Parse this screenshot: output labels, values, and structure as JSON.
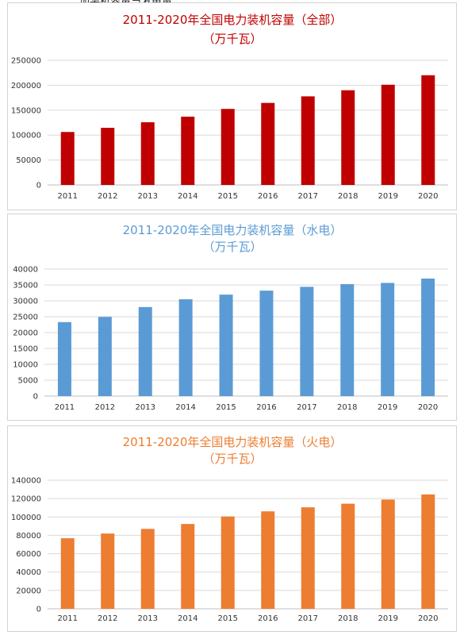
{
  "page": {
    "top_text": "加装机容量与发电量"
  },
  "chart_data": [
    {
      "type": "bar",
      "title": "2011-2020年全国电力装机容量（全部）",
      "subtitle": "（万千瓦）",
      "title_color": "#c00000",
      "bar_color": "#c00000",
      "categories": [
        "2011",
        "2012",
        "2013",
        "2014",
        "2015",
        "2016",
        "2017",
        "2018",
        "2019",
        "2020"
      ],
      "values": [
        106253,
        114676,
        125768,
        137018,
        152527,
        164575,
        177708,
        189967,
        201006,
        220058
      ],
      "ylim": [
        0,
        250000
      ],
      "yticks": [
        0,
        50000,
        100000,
        150000,
        200000,
        250000
      ],
      "grid": true,
      "legend": "none"
    },
    {
      "type": "bar",
      "title": "2011-2020年全国电力装机容量（水电）",
      "subtitle": "（万千瓦）",
      "title_color": "#5b9bd5",
      "bar_color": "#5b9bd5",
      "categories": [
        "2011",
        "2012",
        "2013",
        "2014",
        "2015",
        "2016",
        "2017",
        "2018",
        "2019",
        "2020"
      ],
      "values": [
        23298,
        24947,
        28044,
        30486,
        31954,
        33207,
        34411,
        35259,
        35640,
        37016
      ],
      "ylim": [
        0,
        40000
      ],
      "yticks": [
        0,
        5000,
        10000,
        15000,
        20000,
        25000,
        30000,
        35000,
        40000
      ],
      "grid": true,
      "legend": "none"
    },
    {
      "type": "bar",
      "title": "2011-2020年全国电力装机容量（火电）",
      "subtitle": "（万千瓦）",
      "title_color": "#ed7d31",
      "bar_color": "#ed7d31",
      "categories": [
        "2011",
        "2012",
        "2013",
        "2014",
        "2015",
        "2016",
        "2017",
        "2018",
        "2019",
        "2020"
      ],
      "values": [
        76834,
        81968,
        87009,
        92363,
        100554,
        106094,
        110495,
        114408,
        118957,
        124517
      ],
      "ylim": [
        0,
        140000
      ],
      "yticks": [
        0,
        20000,
        40000,
        60000,
        80000,
        100000,
        120000,
        140000
      ],
      "grid": true,
      "legend": "none"
    }
  ]
}
